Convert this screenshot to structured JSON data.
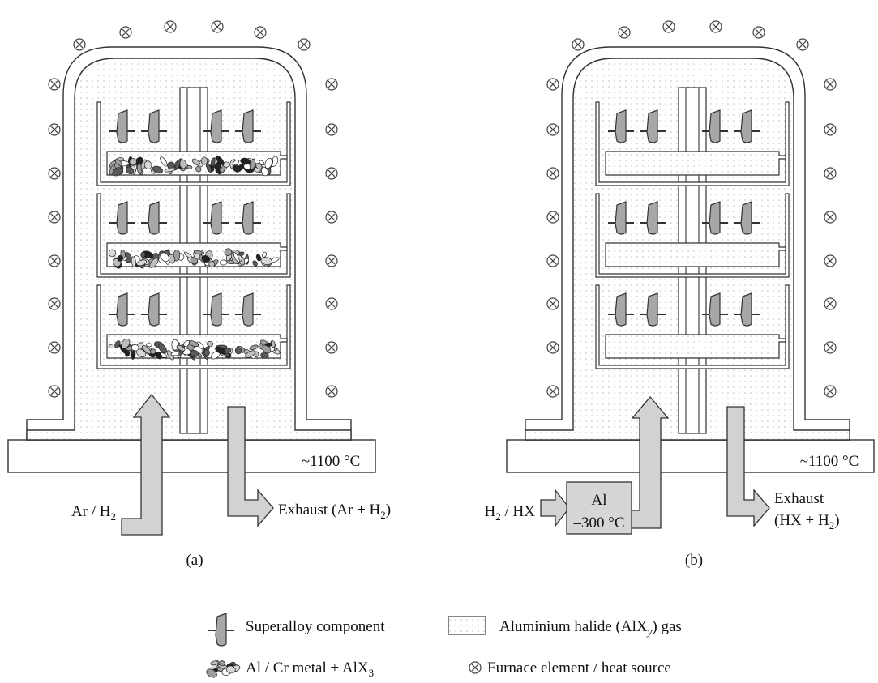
{
  "diagrams": [
    {
      "caption": "(a)",
      "temperature": "~1100 °C",
      "inlet": {
        "prefix": "Ar / H",
        "sub": "2",
        "suffix": ""
      },
      "exhaust_lines": [
        {
          "prefix": "Exhaust (Ar + H",
          "sub": "2",
          "suffix": ")"
        }
      ],
      "trays_have_pack_powder": true
    },
    {
      "caption": "(b)",
      "temperature": "~1100 °C",
      "inlet": {
        "prefix": "H",
        "sub": "2",
        "suffix": " / HX"
      },
      "source_box": {
        "line1": "Al",
        "line2": "–300 °C"
      },
      "exhaust_lines": [
        {
          "prefix": "Exhaust",
          "sub": "",
          "suffix": ""
        },
        {
          "prefix": "(HX + H",
          "sub": "2",
          "suffix": ")"
        }
      ],
      "trays_have_pack_powder": false
    }
  ],
  "legend": {
    "superalloy": "Superalloy component",
    "gas": {
      "prefix": "Aluminium halide (AlX",
      "sub": "y",
      "suffix": ") gas"
    },
    "metal": {
      "prefix": "Al / Cr metal + AlX",
      "sub": "3",
      "suffix": ""
    },
    "furnace": "Furnace element / heat source"
  }
}
